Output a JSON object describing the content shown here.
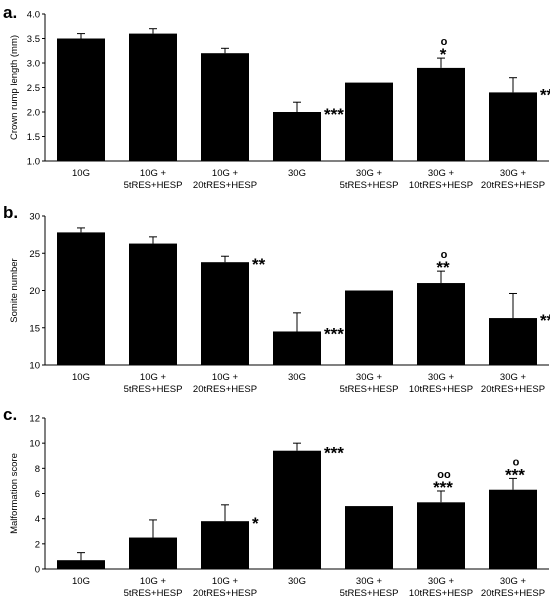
{
  "chart_data": [
    {
      "type": "bar",
      "panel": "a.",
      "ylabel": "Crown rump length (mm)",
      "ylim": [
        1.0,
        4.0
      ],
      "yticks": [
        "1.0",
        "1.5",
        "2.0",
        "2.5",
        "3.0",
        "3.5",
        "4.0"
      ],
      "categories": [
        [
          "10G"
        ],
        [
          "10G +",
          "5tRES+HESP"
        ],
        [
          "10G +",
          "20tRES+HESP"
        ],
        [
          "30G"
        ],
        [
          "30G +",
          "5tRES+HESP"
        ],
        [
          "30G +",
          "10tRES+HESP"
        ],
        [
          "30G +",
          "20tRES+HESP"
        ]
      ],
      "values": [
        3.5,
        3.6,
        3.2,
        2.0,
        2.6,
        2.9,
        2.4
      ],
      "errors": [
        0.1,
        0.1,
        0.1,
        0.2,
        0.0,
        0.2,
        0.3
      ],
      "annotations": [
        {
          "index": 3,
          "stars": "***",
          "circles": ""
        },
        {
          "index": 5,
          "stars": "*",
          "circles": "o"
        },
        {
          "index": 6,
          "stars": "**",
          "circles": ""
        }
      ]
    },
    {
      "type": "bar",
      "panel": "b.",
      "ylabel": "Somite number",
      "ylim": [
        10,
        30
      ],
      "yticks": [
        "10",
        "15",
        "20",
        "25",
        "30"
      ],
      "categories": [
        [
          "10G"
        ],
        [
          "10G +",
          "5tRES+HESP"
        ],
        [
          "10G +",
          "20tRES+HESP"
        ],
        [
          "30G"
        ],
        [
          "30G +",
          "5tRES+HESP"
        ],
        [
          "30G +",
          "10tRES+HESP"
        ],
        [
          "30G +",
          "20tRES+HESP"
        ]
      ],
      "values": [
        27.8,
        26.3,
        23.8,
        14.5,
        20.0,
        21.0,
        16.3
      ],
      "errors": [
        0.6,
        0.9,
        0.8,
        2.5,
        0.0,
        1.6,
        3.3
      ],
      "annotations": [
        {
          "index": 2,
          "stars": "**",
          "circles": ""
        },
        {
          "index": 3,
          "stars": "***",
          "circles": ""
        },
        {
          "index": 5,
          "stars": "**",
          "circles": "o"
        },
        {
          "index": 6,
          "stars": "**",
          "circles": ""
        }
      ]
    },
    {
      "type": "bar",
      "panel": "c.",
      "ylabel": "Malformation score",
      "ylim": [
        0,
        12
      ],
      "yticks": [
        "0",
        "2",
        "4",
        "6",
        "8",
        "10",
        "12"
      ],
      "categories": [
        [
          "10G"
        ],
        [
          "10G +",
          "5tRES+HESP"
        ],
        [
          "10G +",
          "20tRES+HESP"
        ],
        [
          "30G"
        ],
        [
          "30G +",
          "5tRES+HESP"
        ],
        [
          "30G +",
          "10tRES+HESP"
        ],
        [
          "30G +",
          "20tRES+HESP"
        ]
      ],
      "values": [
        0.7,
        2.5,
        3.8,
        9.4,
        5.0,
        5.3,
        6.3
      ],
      "errors": [
        0.6,
        1.4,
        1.3,
        0.6,
        0.0,
        0.9,
        0.9
      ],
      "annotations": [
        {
          "index": 2,
          "stars": "*",
          "circles": ""
        },
        {
          "index": 3,
          "stars": "***",
          "circles": ""
        },
        {
          "index": 5,
          "stars": "***",
          "circles": "oo"
        },
        {
          "index": 6,
          "stars": "***",
          "circles": "o"
        }
      ]
    }
  ]
}
